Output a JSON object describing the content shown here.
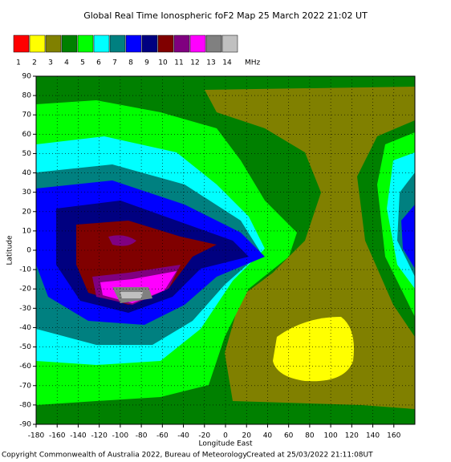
{
  "title": "Global Real Time Ionospheric foF2 Map  25 March 2022 21:02 UT",
  "legend": {
    "unit": "MHz",
    "items": [
      {
        "label": "1",
        "color": "#ff0000"
      },
      {
        "label": "2",
        "color": "#ffff00"
      },
      {
        "label": "3",
        "color": "#808000"
      },
      {
        "label": "4",
        "color": "#008000"
      },
      {
        "label": "5",
        "color": "#00ff00"
      },
      {
        "label": "6",
        "color": "#00ffff"
      },
      {
        "label": "7",
        "color": "#008080"
      },
      {
        "label": "8",
        "color": "#0000ff"
      },
      {
        "label": "9",
        "color": "#000080"
      },
      {
        "label": "10",
        "color": "#800000"
      },
      {
        "label": "11",
        "color": "#800080"
      },
      {
        "label": "12",
        "color": "#ff00ff"
      },
      {
        "label": "13",
        "color": "#808080"
      },
      {
        "label": "14",
        "color": "#c0c0c0"
      }
    ]
  },
  "map": {
    "xlabel": "Longitude East",
    "ylabel": "Latitude",
    "xlim": [
      -180,
      180
    ],
    "ylim": [
      -90,
      90
    ],
    "xticks": [
      -180,
      -160,
      -140,
      -120,
      -100,
      -80,
      -60,
      -40,
      -20,
      0,
      20,
      40,
      60,
      80,
      100,
      120,
      140,
      160
    ],
    "yticks": [
      90,
      80,
      70,
      60,
      50,
      40,
      30,
      20,
      10,
      0,
      -10,
      -20,
      -30,
      -40,
      -50,
      -60,
      -70,
      -80,
      -90
    ]
  },
  "footer": {
    "copyright": "Copyright Commonwealth of Australia 2022, Bureau of Meteorology",
    "created": "Created at 25/03/2022 21:11:08UT"
  }
}
